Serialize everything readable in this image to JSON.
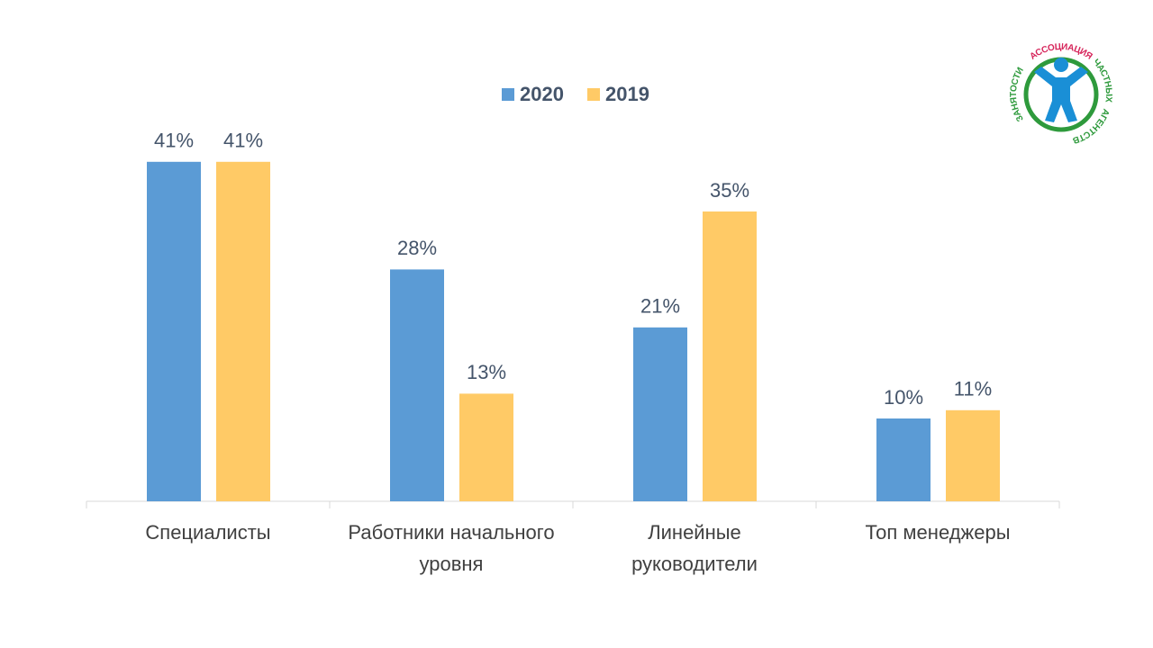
{
  "chart_data": {
    "type": "bar",
    "categories": [
      "Специалисты",
      "Работники начального\nуровня",
      "Линейные\nруководители",
      "Топ менеджеры"
    ],
    "series": [
      {
        "name": "2020",
        "color": "#5b9bd5",
        "values": [
          41,
          28,
          21,
          10
        ],
        "value_labels": [
          "41%",
          "28%",
          "21%",
          "10%"
        ]
      },
      {
        "name": "2019",
        "color": "#ffca66",
        "values": [
          41,
          13,
          35,
          11
        ],
        "value_labels": [
          "41%",
          "13%",
          "35%",
          "11%"
        ]
      }
    ],
    "ylim": [
      0,
      45
    ],
    "legend": "top"
  },
  "logo": {
    "words": [
      "ЗАНЯТОСТИ",
      "АССОЦИАЦИЯ",
      "ЧАСТНЫХ",
      "АГЕНТСТВ"
    ]
  }
}
